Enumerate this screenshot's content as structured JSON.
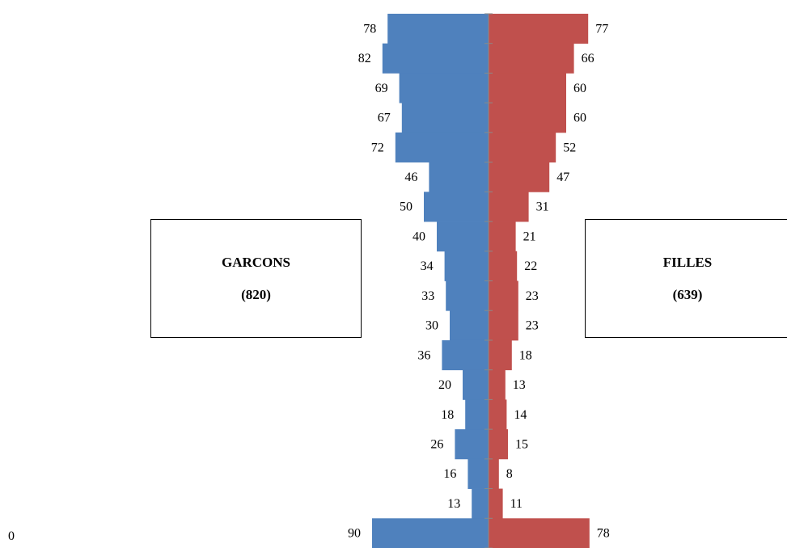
{
  "chart_data": {
    "type": "bar",
    "orientation": "horizontal-population-pyramid",
    "title": "",
    "xlabel": "",
    "ylabel": "",
    "x_axis_label": "0",
    "series": [
      {
        "name": "GARCONS",
        "total": "(820)",
        "color": "#4F81BD",
        "side": "left",
        "values": [
          78,
          82,
          69,
          67,
          72,
          46,
          50,
          40,
          34,
          33,
          30,
          36,
          20,
          18,
          26,
          16,
          13,
          90
        ]
      },
      {
        "name": "FILLES",
        "total": "(639)",
        "color": "#C0504D",
        "side": "right",
        "values": [
          77,
          66,
          60,
          60,
          52,
          47,
          31,
          21,
          22,
          23,
          23,
          18,
          13,
          14,
          15,
          8,
          11,
          78
        ]
      }
    ],
    "grid": false,
    "legend": "text boxes left and right of the pyramid"
  }
}
